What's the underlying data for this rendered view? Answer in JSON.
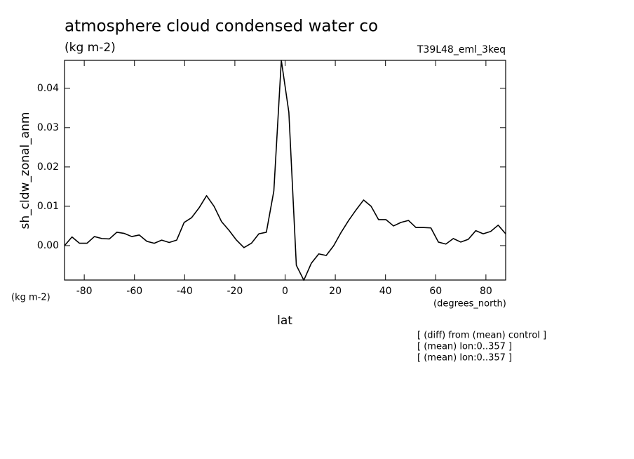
{
  "chart_data": {
    "type": "line",
    "title": "atmosphere cloud condensed water co",
    "units": "(kg m-2)",
    "dataset": "T39L48_eml_3keq",
    "y_label": "sh_cldw_zonal_anm",
    "y_units": "(kg m-2)",
    "x_units": "(degrees_north)",
    "x_label": "lat",
    "notes": [
      "[ (diff) from (mean) control ]",
      "[ (mean) lon:0..357 ]",
      "[ (mean) lon:0..357 ]"
    ],
    "x": [
      -87.86,
      -84.88,
      -81.9,
      -78.92,
      -75.95,
      -72.97,
      -69.99,
      -67.01,
      -64.04,
      -61.06,
      -58.08,
      -55.1,
      -52.12,
      -49.15,
      -46.17,
      -43.19,
      -40.21,
      -37.24,
      -34.26,
      -31.28,
      -28.3,
      -25.32,
      -22.35,
      -19.37,
      -16.39,
      -13.41,
      -10.44,
      -7.46,
      -4.48,
      -1.5,
      1.5,
      4.48,
      7.46,
      10.44,
      13.41,
      16.39,
      19.37,
      22.35,
      25.32,
      28.3,
      31.28,
      34.26,
      37.24,
      40.21,
      43.19,
      46.17,
      49.15,
      52.12,
      55.1,
      58.08,
      61.06,
      64.04,
      67.01,
      69.99,
      72.97,
      75.95,
      78.92,
      81.9,
      84.88,
      87.86
    ],
    "series": [
      {
        "color": "#000000",
        "values": [
          0.0,
          0.0022,
          0.0006,
          0.0006,
          0.0023,
          0.0018,
          0.0017,
          0.0034,
          0.0031,
          0.0023,
          0.0027,
          0.0011,
          0.0006,
          0.0014,
          0.0008,
          0.0014,
          0.0059,
          0.0071,
          0.0096,
          0.0127,
          0.01,
          0.0061,
          0.0039,
          0.0014,
          -0.0005,
          0.0006,
          0.003,
          0.0034,
          0.0139,
          0.0471,
          0.0339,
          -0.005,
          -0.0088,
          -0.0045,
          -0.0021,
          -0.0025,
          0.0,
          0.0034,
          0.0064,
          0.0091,
          0.0116,
          0.01,
          0.0066,
          0.0066,
          0.005,
          0.0059,
          0.0064,
          0.0046,
          0.0046,
          0.0045,
          0.0009,
          0.0004,
          0.0018,
          0.0009,
          0.0016,
          0.0038,
          0.003,
          0.0036,
          0.0052,
          0.003
        ]
      }
    ],
    "xlim": [
      -87.86,
      87.86
    ],
    "ylim": [
      -0.00875,
      0.0471
    ],
    "xticks": [
      -80,
      -60,
      -40,
      -20,
      0,
      20,
      40,
      60,
      80
    ],
    "yticks": [
      {
        "value": 0,
        "label": "0.00"
      },
      0.01,
      0.02,
      0.03,
      0.04
    ]
  }
}
